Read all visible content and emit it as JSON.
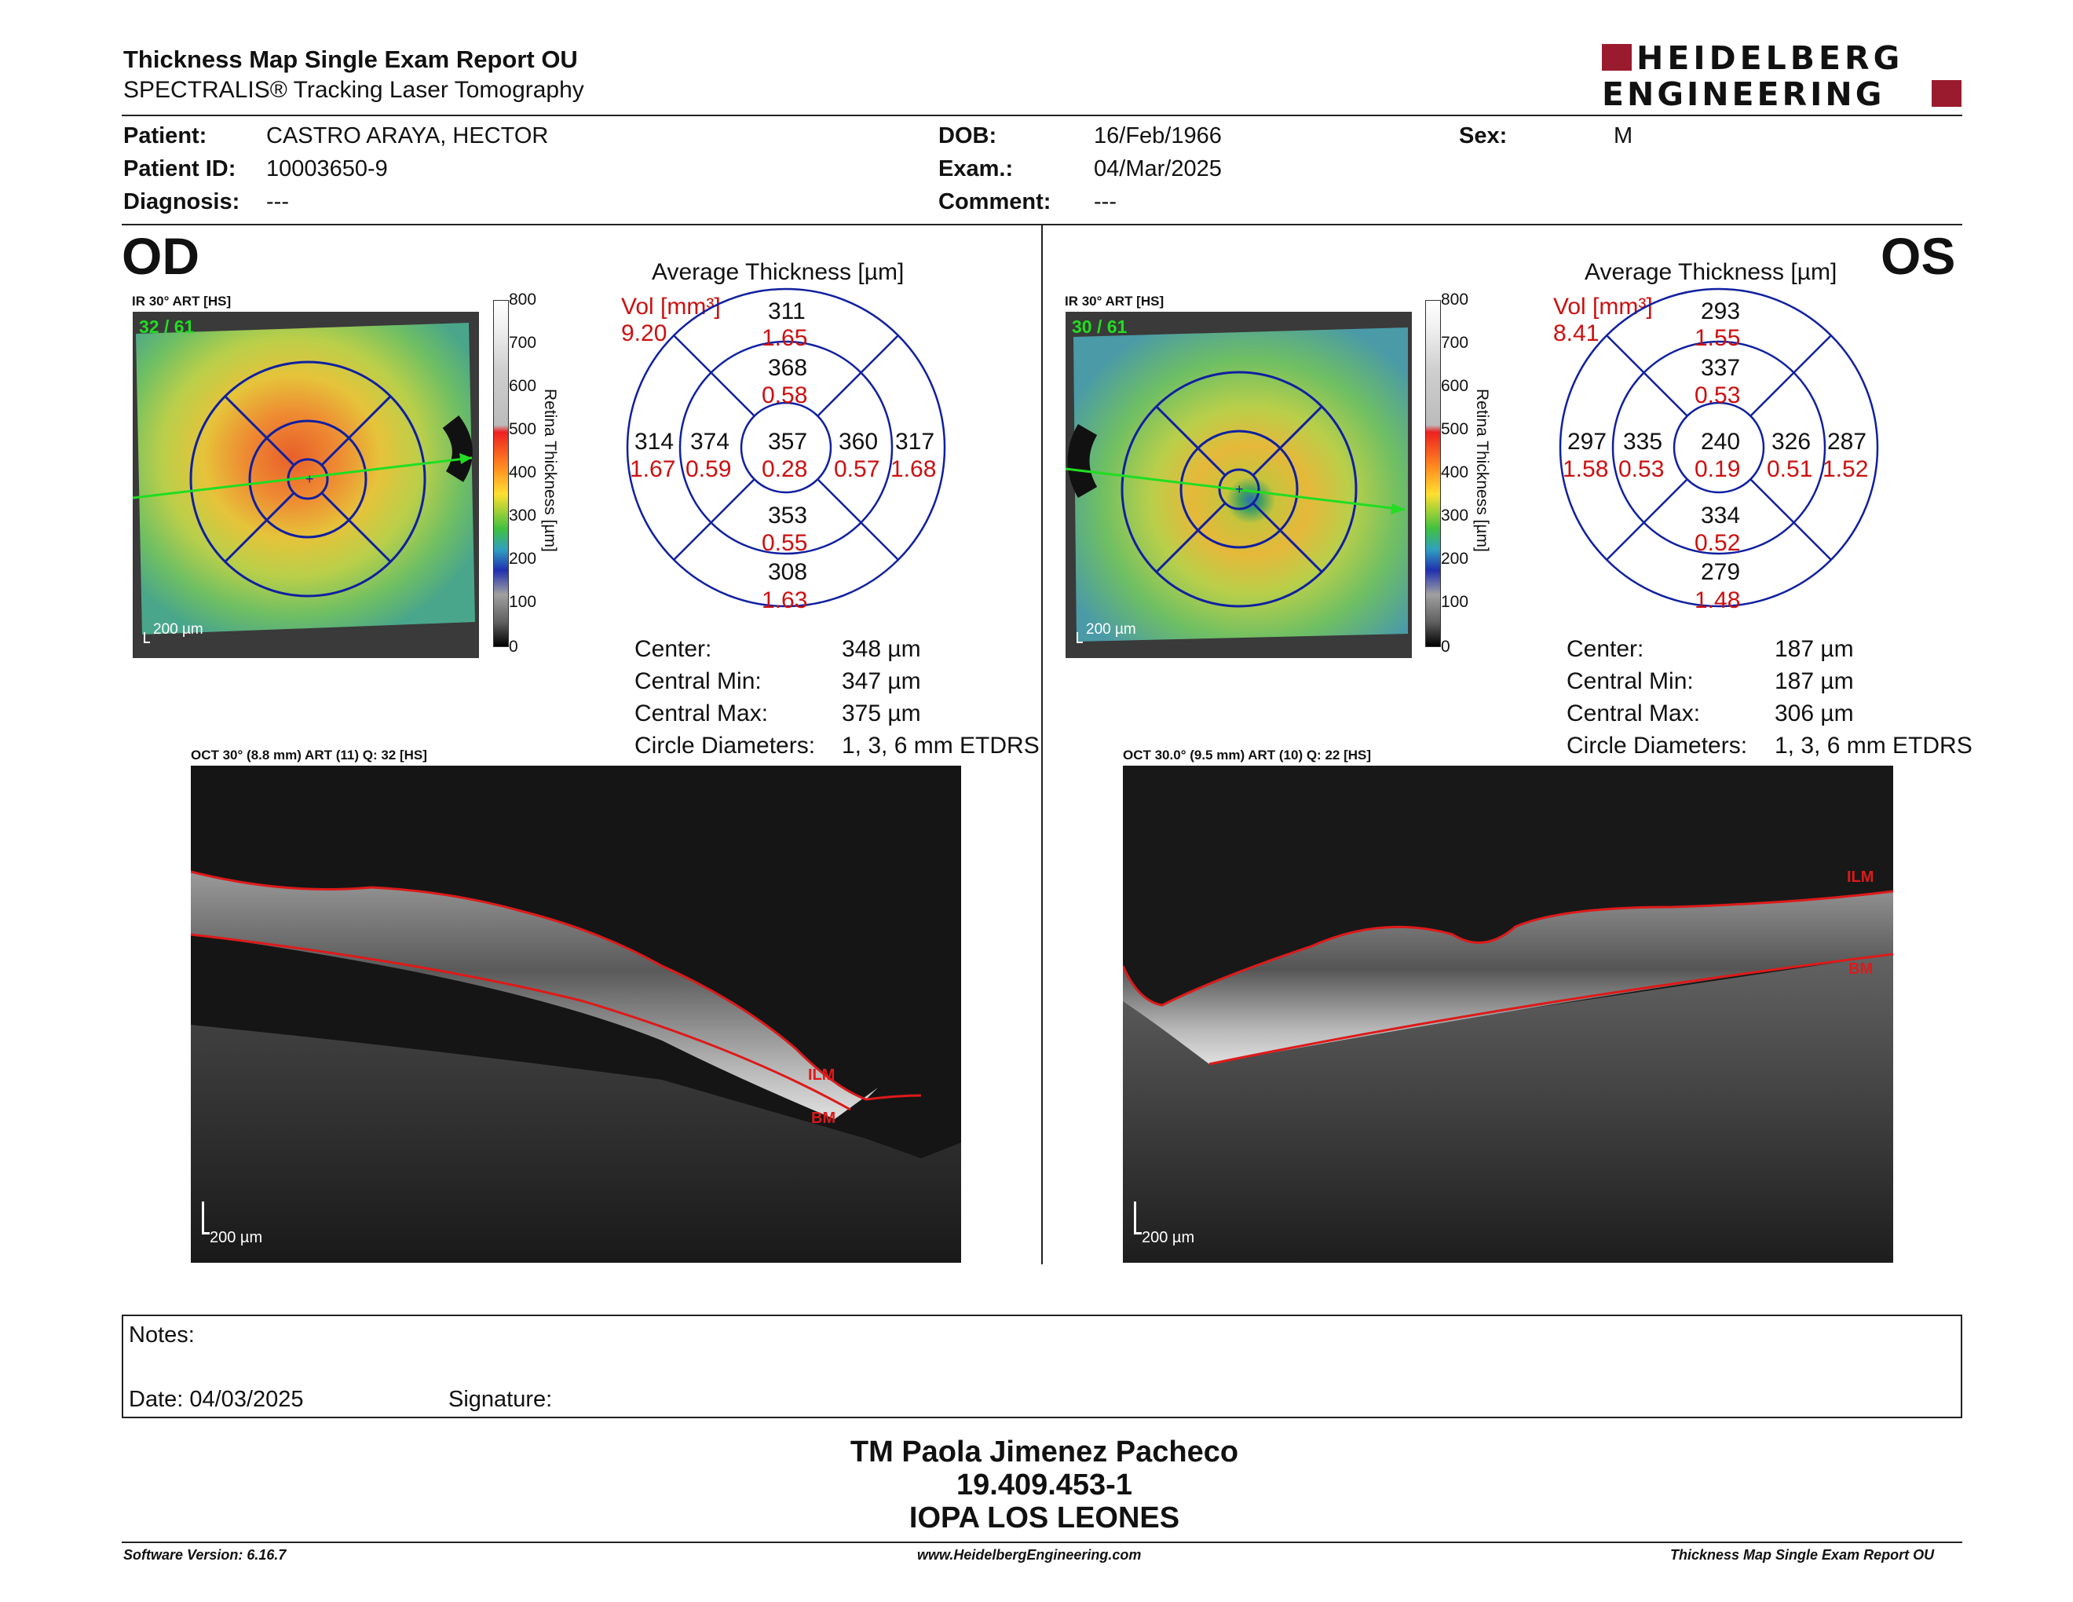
{
  "header": {
    "title": "Thickness Map Single Exam Report OU",
    "subtitle": "SPECTRALIS® Tracking Laser Tomography",
    "brand_line1": "HEIDELBERG",
    "brand_line2": "ENGINEERING"
  },
  "patient": {
    "patient_label": "Patient:",
    "patient_value": "CASTRO ARAYA, HECTOR",
    "id_label": "Patient ID:",
    "id_value": "10003650-9",
    "diagnosis_label": "Diagnosis:",
    "diagnosis_value": "---",
    "dob_label": "DOB:",
    "dob_value": "16/Feb/1966",
    "exam_label": "Exam.:",
    "exam_value": "04/Mar/2025",
    "comment_label": "Comment:",
    "comment_value": "---",
    "sex_label": "Sex:",
    "sex_value": "M"
  },
  "od": {
    "eye": "OD",
    "ir_header": "IR 30° ART [HS]",
    "frames": "32 / 61",
    "scale_bar": "200 µm",
    "avg_title": "Average Thickness [µm]",
    "vol_label": "Vol [mm³]",
    "vol_value": "9.20",
    "grid": {
      "outer_sup": "311",
      "outer_sup_vol": "1.65",
      "inner_sup": "368",
      "inner_sup_vol": "0.58",
      "outer_temp": "314",
      "outer_temp_vol": "1.67",
      "inner_temp": "374",
      "inner_temp_vol": "0.59",
      "center": "357",
      "center_vol": "0.28",
      "inner_nas": "360",
      "inner_nas_vol": "0.57",
      "outer_nas": "317",
      "outer_nas_vol": "1.68",
      "inner_inf": "353",
      "inner_inf_vol": "0.55",
      "outer_inf": "308",
      "outer_inf_vol": "1.63"
    },
    "stats": {
      "center_label": "Center:",
      "center_value": "348 µm",
      "cmin_label": "Central Min:",
      "cmin_value": "347 µm",
      "cmax_label": "Central Max:",
      "cmax_value": "375 µm",
      "diam_label": "Circle Diameters:",
      "diam_value": "1, 3, 6 mm ETDRS"
    },
    "oct_header": "OCT 30° (8.8 mm) ART (11) Q: 32 [HS]",
    "oct_scale": "200 µm",
    "ilm": "ILM",
    "bm": "BM"
  },
  "os": {
    "eye": "OS",
    "ir_header": "IR 30° ART [HS]",
    "frames": "30 / 61",
    "scale_bar": "200 µm",
    "avg_title": "Average Thickness [µm]",
    "vol_label": "Vol [mm³]",
    "vol_value": "8.41",
    "grid": {
      "outer_sup": "293",
      "outer_sup_vol": "1.55",
      "inner_sup": "337",
      "inner_sup_vol": "0.53",
      "outer_temp": "297",
      "outer_temp_vol": "1.58",
      "inner_temp": "335",
      "inner_temp_vol": "0.53",
      "center": "240",
      "center_vol": "0.19",
      "inner_nas": "326",
      "inner_nas_vol": "0.51",
      "outer_nas": "287",
      "outer_nas_vol": "1.52",
      "inner_inf": "334",
      "inner_inf_vol": "0.52",
      "outer_inf": "279",
      "outer_inf_vol": "1.48"
    },
    "stats": {
      "center_label": "Center:",
      "center_value": "187 µm",
      "cmin_label": "Central Min:",
      "cmin_value": "187 µm",
      "cmax_label": "Central Max:",
      "cmax_value": "306 µm",
      "diam_label": "Circle Diameters:",
      "diam_value": "1, 3, 6 mm ETDRS"
    },
    "oct_header": "OCT 30.0° (9.5 mm) ART (10) Q: 22 [HS]",
    "oct_scale": "200 µm",
    "ilm": "ILM",
    "bm": "BM"
  },
  "colorscale": {
    "ticks": [
      "800",
      "700",
      "600",
      "500",
      "400",
      "300",
      "200",
      "100",
      "0"
    ],
    "axis_label": "Retina Thickness [µm]"
  },
  "notes": {
    "notes_label": "Notes:",
    "date_label": "Date: 04/03/2025",
    "signature_label": "Signature:"
  },
  "signature_block": {
    "name": "TM Paola Jimenez Pacheco",
    "rut": "19.409.453-1",
    "institution": "IOPA LOS LEONES"
  },
  "footer": {
    "software": "Software Version: 6.16.7",
    "website": "www.HeidelbergEngineering.com",
    "report": "Thickness Map Single Exam Report OU"
  }
}
